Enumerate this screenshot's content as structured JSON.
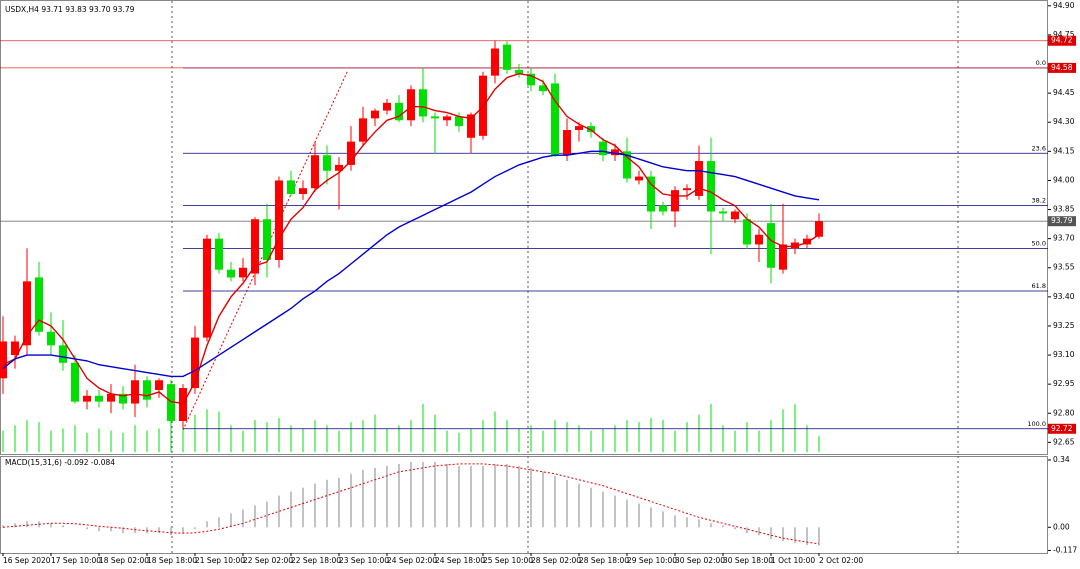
{
  "chart_data": {
    "type": "candlestick",
    "title": "USDX,H4  93.71 93.83 93.70 93.79",
    "up_color": "#ff0000",
    "down_color": "#00e000",
    "categories": [
      "16 Sep 2020",
      null,
      null,
      null,
      "17 Sep 10:00",
      null,
      null,
      null,
      "18 Sep 02:00",
      null,
      null,
      null,
      "18 Sep 18:00",
      null,
      null,
      null,
      "21 Sep 10:00",
      null,
      null,
      null,
      "22 Sep 02:00",
      null,
      null,
      null,
      "22 Sep 18:00",
      null,
      null,
      null,
      "23 Sep 10:00",
      null,
      null,
      null,
      "24 Sep 02:00",
      null,
      null,
      null,
      "24 Sep 18:00",
      null,
      null,
      null,
      "25 Sep 10:00",
      null,
      null,
      null,
      "28 Sep 02:00",
      null,
      null,
      null,
      "28 Sep 18:00",
      null,
      null,
      null,
      "29 Sep 10:00",
      null,
      null,
      null,
      "30 Sep 02:00",
      null,
      null,
      null,
      "30 Sep 18:00",
      null,
      null,
      null,
      "1 Oct 10:00",
      null,
      null,
      null,
      "2 Oct 02:00"
    ],
    "open": [
      92.98,
      93.1,
      93.15,
      93.5,
      93.22,
      93.15,
      93.06,
      92.86,
      92.89,
      92.86,
      92.9,
      92.85,
      92.97,
      92.92,
      92.95,
      92.76,
      92.93,
      93.19,
      93.7,
      93.54,
      93.5,
      93.52,
      93.8,
      93.59,
      94.0,
      93.93,
      93.96,
      94.13,
      94.05,
      94.08,
      94.2,
      94.32,
      94.36,
      94.4,
      94.31,
      94.47,
      94.33,
      94.31,
      94.33,
      94.22,
      94.23,
      94.54,
      94.7,
      94.57,
      94.55,
      94.49,
      94.5,
      94.13,
      94.26,
      94.28,
      94.2,
      94.13,
      94.15,
      94.0,
      94.02,
      93.87,
      93.84,
      93.95,
      93.92,
      94.1,
      93.84,
      93.8,
      93.8,
      93.67,
      93.78,
      93.54,
      93.65,
      93.67,
      93.71
    ],
    "high": [
      93.3,
      93.2,
      93.65,
      93.58,
      93.32,
      93.28,
      93.1,
      92.92,
      92.92,
      92.95,
      92.94,
      93.05,
      92.99,
      92.98,
      92.97,
      92.95,
      93.25,
      93.72,
      93.73,
      93.58,
      93.6,
      93.81,
      93.88,
      94.02,
      94.05,
      94.0,
      94.2,
      94.18,
      94.12,
      94.28,
      94.38,
      94.37,
      94.42,
      94.44,
      94.49,
      94.58,
      94.35,
      94.34,
      94.35,
      94.35,
      94.56,
      94.72,
      94.72,
      94.6,
      94.58,
      94.52,
      94.55,
      94.32,
      94.3,
      94.3,
      94.22,
      94.19,
      94.22,
      94.05,
      94.05,
      93.89,
      93.97,
      93.98,
      94.18,
      94.22,
      93.86,
      93.85,
      93.83,
      93.75,
      93.88,
      93.88,
      93.7,
      93.72,
      93.83
    ],
    "low": [
      92.9,
      93.03,
      93.1,
      93.2,
      93.1,
      93.02,
      92.85,
      92.82,
      92.83,
      92.8,
      92.82,
      92.78,
      92.83,
      92.88,
      92.7,
      92.72,
      92.9,
      93.17,
      93.52,
      93.48,
      93.48,
      93.46,
      93.5,
      93.55,
      93.92,
      93.9,
      93.94,
      93.98,
      93.85,
      94.05,
      94.18,
      94.28,
      94.34,
      94.3,
      94.28,
      94.3,
      94.14,
      94.28,
      94.25,
      94.14,
      94.21,
      94.5,
      94.55,
      94.53,
      94.46,
      94.44,
      94.12,
      94.1,
      94.2,
      94.22,
      94.1,
      94.1,
      93.99,
      93.98,
      93.75,
      93.82,
      93.76,
      93.9,
      93.9,
      93.62,
      93.79,
      93.78,
      93.65,
      93.58,
      93.47,
      93.52,
      93.62,
      93.65,
      93.7
    ],
    "close": [
      93.17,
      93.17,
      93.48,
      93.22,
      93.15,
      93.06,
      92.86,
      92.89,
      92.86,
      92.9,
      92.85,
      92.97,
      92.87,
      92.97,
      92.76,
      92.93,
      93.19,
      93.7,
      93.54,
      93.5,
      93.55,
      93.8,
      93.59,
      94.0,
      93.93,
      93.96,
      94.13,
      94.05,
      94.08,
      94.2,
      94.32,
      94.36,
      94.4,
      94.31,
      94.47,
      94.33,
      94.32,
      94.33,
      94.28,
      94.34,
      94.54,
      94.68,
      94.57,
      94.55,
      94.49,
      94.46,
      94.13,
      94.26,
      94.28,
      94.25,
      94.13,
      94.16,
      94.01,
      94.02,
      93.84,
      93.84,
      93.95,
      93.96,
      94.1,
      93.84,
      93.83,
      93.84,
      93.67,
      93.72,
      93.55,
      93.67,
      93.68,
      93.7,
      93.79
    ],
    "ma": [
      {
        "color": "#e00000",
        "values": [
          93.05,
          93.08,
          93.2,
          93.28,
          93.25,
          93.18,
          93.08,
          92.98,
          92.93,
          92.9,
          92.89,
          92.9,
          92.89,
          92.91,
          92.86,
          92.85,
          92.96,
          93.15,
          93.3,
          93.4,
          93.47,
          93.56,
          93.58,
          93.7,
          93.8,
          93.86,
          93.95,
          94.0,
          94.04,
          94.1,
          94.18,
          94.25,
          94.31,
          94.33,
          94.38,
          94.38,
          94.36,
          94.35,
          94.33,
          94.32,
          94.38,
          94.47,
          94.53,
          94.55,
          94.54,
          94.51,
          94.41,
          94.33,
          94.29,
          94.26,
          94.21,
          94.18,
          94.12,
          94.07,
          93.98,
          93.93,
          93.92,
          93.92,
          93.96,
          93.94,
          93.9,
          93.87,
          93.8,
          93.76,
          93.69,
          93.66,
          93.66,
          93.68,
          93.72
        ]
      },
      {
        "color": "#0000d0",
        "values": [
          93.03,
          93.08,
          93.1,
          93.1,
          93.1,
          93.09,
          93.08,
          93.07,
          93.05,
          93.04,
          93.03,
          93.02,
          93.01,
          93.0,
          92.99,
          92.99,
          93.02,
          93.06,
          93.1,
          93.14,
          93.18,
          93.22,
          93.26,
          93.3,
          93.34,
          93.39,
          93.43,
          93.48,
          93.52,
          93.57,
          93.62,
          93.67,
          93.72,
          93.76,
          93.79,
          93.82,
          93.85,
          93.88,
          93.91,
          93.94,
          93.98,
          94.02,
          94.05,
          94.08,
          94.1,
          94.12,
          94.13,
          94.13,
          94.14,
          94.15,
          94.15,
          94.14,
          94.13,
          94.11,
          94.09,
          94.07,
          94.06,
          94.05,
          94.05,
          94.04,
          94.03,
          94.02,
          94.0,
          93.98,
          93.96,
          93.94,
          93.92,
          93.91,
          93.9
        ]
      }
    ],
    "volume": {
      "color": "#00e000",
      "values": [
        20,
        25,
        30,
        28,
        20,
        22,
        25,
        18,
        22,
        20,
        18,
        25,
        20,
        22,
        40,
        30,
        35,
        40,
        38,
        25,
        20,
        30,
        28,
        32,
        25,
        22,
        30,
        25,
        20,
        28,
        30,
        35,
        22,
        25,
        30,
        45,
        35,
        20,
        18,
        22,
        30,
        38,
        30,
        22,
        25,
        20,
        30,
        28,
        25,
        20,
        22,
        25,
        30,
        28,
        32,
        30,
        20,
        28,
        35,
        45,
        25,
        20,
        28,
        20,
        30,
        40,
        45,
        25,
        15
      ]
    },
    "ylim": [
      92.59,
      94.93
    ],
    "yticks": [
      {
        "value": 94.9,
        "label": "94.90"
      },
      {
        "value": 94.75,
        "label": "94.75"
      },
      {
        "value": 94.45,
        "label": "94.45"
      },
      {
        "value": 94.3,
        "label": "94.30"
      },
      {
        "value": 94.15,
        "label": "94.15"
      },
      {
        "value": 94.0,
        "label": "94.00"
      },
      {
        "value": 93.85,
        "label": "93.85"
      },
      {
        "value": 93.7,
        "label": "93.70"
      },
      {
        "value": 93.55,
        "label": "93.55"
      },
      {
        "value": 93.4,
        "label": "93.40"
      },
      {
        "value": 93.25,
        "label": "93.25"
      },
      {
        "value": 93.1,
        "label": "93.10"
      },
      {
        "value": 92.95,
        "label": "92.95"
      },
      {
        "value": 92.8,
        "label": "92.80"
      },
      {
        "value": 92.65,
        "label": "92.65"
      }
    ],
    "levels": [
      {
        "value": 94.72,
        "color": "#dd0000",
        "line": true
      },
      {
        "value": 94.58,
        "color": "#dd0000",
        "line": true
      },
      {
        "value": 93.79,
        "color": "#555555",
        "line": true
      },
      {
        "value": 92.72,
        "color": "#dd0000",
        "line": false
      }
    ],
    "fib": {
      "color": "#000080",
      "levels": [
        {
          "label": "0.0",
          "value": 94.58
        },
        {
          "label": "23.6",
          "value": 94.14
        },
        {
          "label": "38.2",
          "value": 93.87
        },
        {
          "label": "50.0",
          "value": 93.65
        },
        {
          "label": "61.8",
          "value": 93.43
        },
        {
          "label": "100.0",
          "value": 92.72
        }
      ]
    },
    "macd": {
      "title": "MACD(15,31,6) -0.092 -0.084",
      "ylim": [
        -0.13,
        0.36
      ],
      "yticks": [
        0.34,
        {
          "value": 0,
          "label": "0.00"
        },
        -0.117
      ],
      "histogram": {
        "color": "#b4b4b4",
        "values": [
          0.01,
          0.02,
          0.03,
          0.03,
          0.02,
          0.01,
          0.0,
          -0.01,
          -0.02,
          -0.02,
          -0.03,
          -0.03,
          -0.03,
          -0.03,
          -0.04,
          -0.03,
          -0.01,
          0.03,
          0.05,
          0.07,
          0.09,
          0.11,
          0.13,
          0.16,
          0.18,
          0.2,
          0.22,
          0.24,
          0.25,
          0.27,
          0.29,
          0.3,
          0.31,
          0.32,
          0.33,
          0.33,
          0.33,
          0.32,
          0.31,
          0.31,
          0.31,
          0.32,
          0.32,
          0.31,
          0.3,
          0.28,
          0.26,
          0.24,
          0.22,
          0.2,
          0.18,
          0.16,
          0.14,
          0.12,
          0.1,
          0.08,
          0.06,
          0.05,
          0.04,
          0.02,
          0.01,
          -0.01,
          -0.03,
          -0.04,
          -0.06,
          -0.07,
          -0.08,
          -0.09,
          -0.092
        ]
      },
      "signal": {
        "color": "#e00000",
        "values": [
          0,
          0.005,
          0.01,
          0.015,
          0.02,
          0.02,
          0.018,
          0.012,
          0.005,
          0,
          -0.005,
          -0.012,
          -0.018,
          -0.022,
          -0.028,
          -0.03,
          -0.028,
          -0.02,
          -0.01,
          0.005,
          0.02,
          0.04,
          0.06,
          0.08,
          0.1,
          0.12,
          0.14,
          0.16,
          0.18,
          0.2,
          0.22,
          0.24,
          0.26,
          0.28,
          0.29,
          0.3,
          0.31,
          0.315,
          0.32,
          0.32,
          0.32,
          0.315,
          0.31,
          0.3,
          0.29,
          0.28,
          0.27,
          0.255,
          0.24,
          0.225,
          0.21,
          0.19,
          0.17,
          0.15,
          0.13,
          0.11,
          0.09,
          0.07,
          0.05,
          0.035,
          0.02,
          0.005,
          -0.01,
          -0.025,
          -0.04,
          -0.055,
          -0.065,
          -0.075,
          -0.084
        ]
      }
    }
  }
}
